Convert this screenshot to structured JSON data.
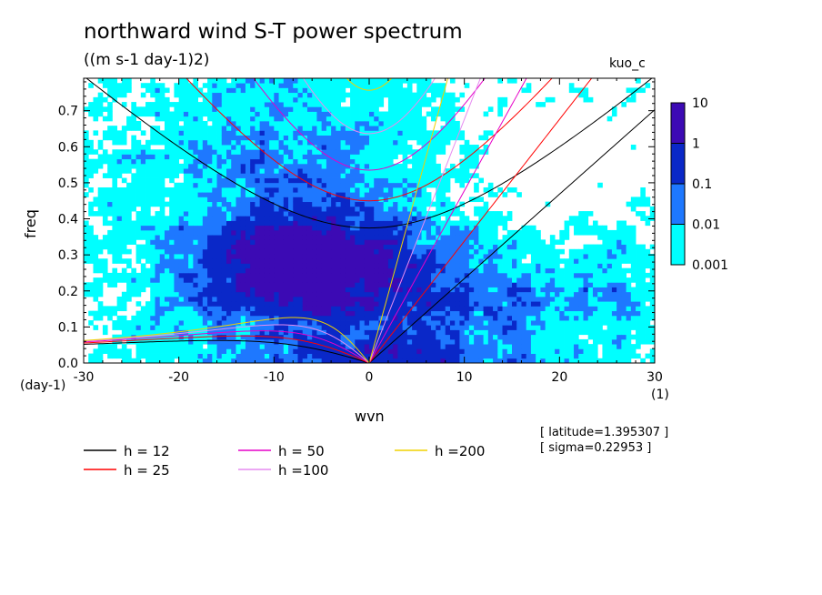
{
  "chart_data": {
    "type": "heatmap",
    "title": "northward wind S-T power spectrum",
    "subtitle": "((m s-1 day-1)2)",
    "tag": "kuo_c",
    "xlabel": "wvn",
    "ylabel": "freq",
    "y_unit": "(day-1)",
    "x_unit": "(1)",
    "xlim": [
      -30,
      30
    ],
    "ylim": [
      0,
      0.79
    ],
    "x_ticks": [
      -30,
      -20,
      -10,
      0,
      10,
      20,
      30
    ],
    "x_tick_labels": [
      "-30",
      "-20",
      "-10",
      "0",
      "10",
      "20",
      "30"
    ],
    "y_ticks": [
      0,
      0.1,
      0.2,
      0.3,
      0.4,
      0.5,
      0.6,
      0.7
    ],
    "y_tick_labels": [
      "0.0",
      "0.1",
      "0.2",
      "0.3",
      "0.4",
      "0.5",
      "0.6",
      "0.7"
    ],
    "colorbar": {
      "levels": [
        "0.001",
        "0.01",
        "0.1",
        "1",
        "10"
      ],
      "colors": [
        "#00ffff",
        "#1e78ff",
        "#0a28c8",
        "#3c0ab4"
      ]
    },
    "dispersion_curves": [
      {
        "label": "h = 12",
        "h": 12,
        "color": "#000000"
      },
      {
        "label": "h = 25",
        "h": 25,
        "color": "#ff0000"
      },
      {
        "label": "h = 50",
        "h": 50,
        "color": "#e600c8"
      },
      {
        "label": "h =100",
        "h": 100,
        "color": "#e68cf0"
      },
      {
        "label": "h =200",
        "h": 200,
        "color": "#f0d200"
      }
    ],
    "info": [
      "[ latitude=1.395307 ]",
      "[ sigma=0.22953 ]"
    ]
  }
}
